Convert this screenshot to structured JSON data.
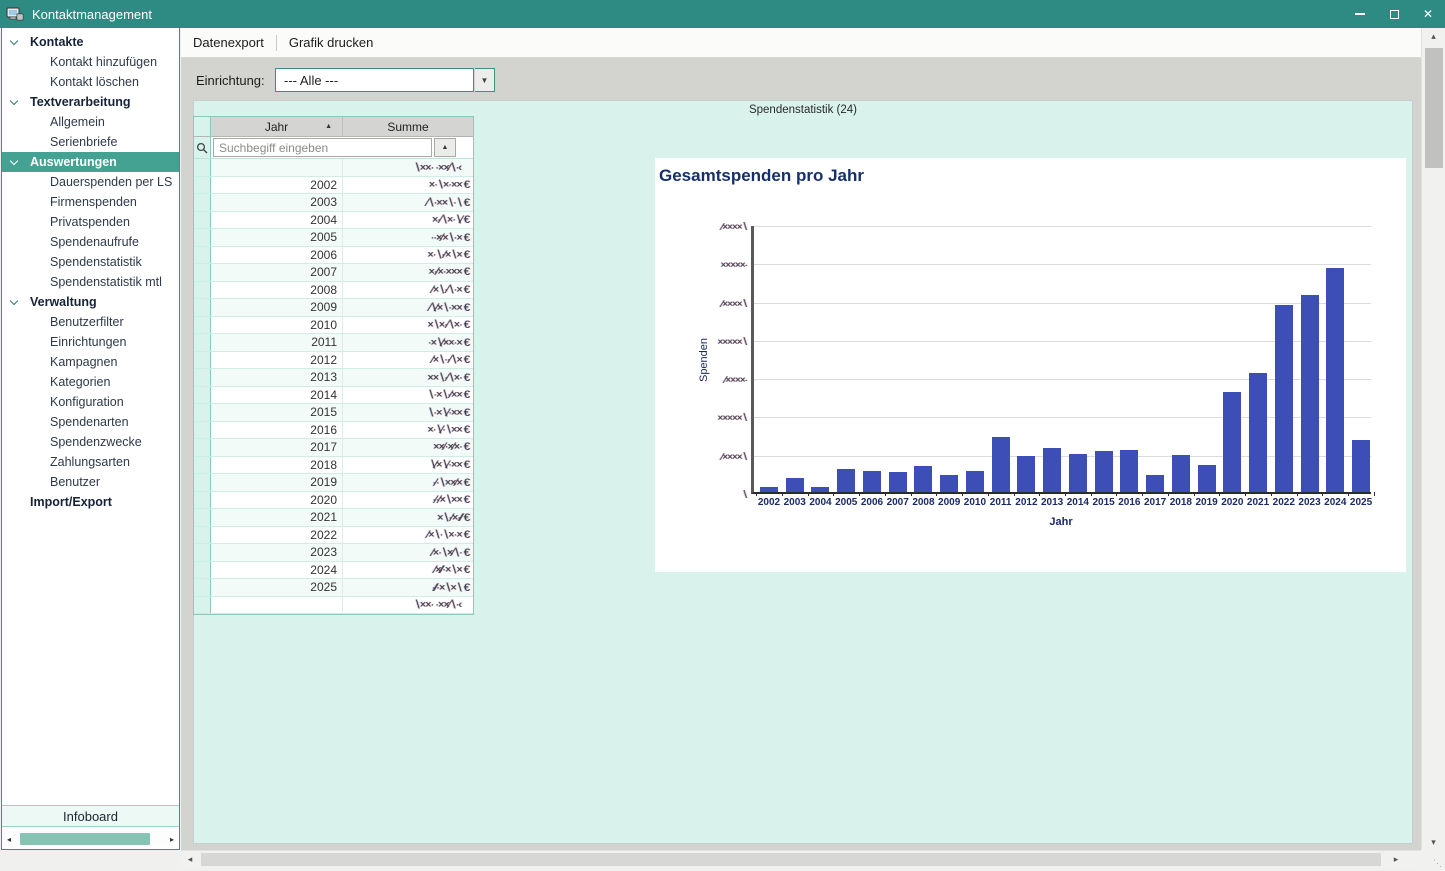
{
  "window": {
    "title": "Kontaktmanagement"
  },
  "sidebar": {
    "items": [
      {
        "label": "Kontakte",
        "type": "section"
      },
      {
        "label": "Kontakt hinzufügen",
        "type": "child"
      },
      {
        "label": "Kontakt löschen",
        "type": "child"
      },
      {
        "label": "Textverarbeitung",
        "type": "section"
      },
      {
        "label": "Allgemein",
        "type": "child"
      },
      {
        "label": "Serienbriefe",
        "type": "child"
      },
      {
        "label": "Auswertungen",
        "type": "section",
        "selected": true
      },
      {
        "label": "Dauerspenden per LS",
        "type": "child"
      },
      {
        "label": "Firmenspenden",
        "type": "child"
      },
      {
        "label": "Privatspenden",
        "type": "child"
      },
      {
        "label": "Spendenaufrufe",
        "type": "child"
      },
      {
        "label": "Spendenstatistik",
        "type": "child"
      },
      {
        "label": "Spendenstatistik mtl",
        "type": "child"
      },
      {
        "label": "Verwaltung",
        "type": "section"
      },
      {
        "label": "Benutzerfilter",
        "type": "child"
      },
      {
        "label": "Einrichtungen",
        "type": "child"
      },
      {
        "label": "Kampagnen",
        "type": "child"
      },
      {
        "label": "Kategorien",
        "type": "child"
      },
      {
        "label": "Konfiguration",
        "type": "child"
      },
      {
        "label": "Spendenarten",
        "type": "child"
      },
      {
        "label": "Spendenzwecke",
        "type": "child"
      },
      {
        "label": "Zahlungsarten",
        "type": "child"
      },
      {
        "label": "Benutzer",
        "type": "child"
      },
      {
        "label": "Import/Export",
        "type": "top"
      }
    ],
    "infoboard_label": "Infoboard"
  },
  "toolbar": {
    "items": [
      {
        "label": "Datenexport"
      },
      {
        "label": "Grafik drucken"
      }
    ]
  },
  "filter": {
    "label": "Einrichtung:",
    "value": "--- Alle ---"
  },
  "panel": {
    "title": "Spendenstatistik (24)"
  },
  "table": {
    "columns": [
      "Jahr",
      "Summe"
    ],
    "search_placeholder": "Suchbegiff eingeben",
    "note": "Summe values are anonymized/scrambled in the source screenshot",
    "rows": [
      {
        "jahr": "",
        "summe": "∖××· ·××∕∖·‹",
        "total": true
      },
      {
        "jahr": "2002",
        "summe": "×·∖×·×× €"
      },
      {
        "jahr": "2003",
        "summe": "∕∖·××∖·∖ €"
      },
      {
        "jahr": "2004",
        "summe": "×·∕∖×·∖∕ €"
      },
      {
        "jahr": "2005",
        "summe": "··×∕×∖·× €"
      },
      {
        "jahr": "2006",
        "summe": "×·∖·∕×∖× €"
      },
      {
        "jahr": "2007",
        "summe": "×·∕×·××× €"
      },
      {
        "jahr": "2008",
        "summe": "∕×∖·∕∖·× €"
      },
      {
        "jahr": "2009",
        "summe": "∕∖∕×∖·×× €"
      },
      {
        "jahr": "2010",
        "summe": "×∖×·∕∖×· €"
      },
      {
        "jahr": "2011",
        "summe": "·×∖∕××·× €"
      },
      {
        "jahr": "2012",
        "summe": "∕×∖··∕∖× €"
      },
      {
        "jahr": "2013",
        "summe": "××∖·∕∖×· €"
      },
      {
        "jahr": "2014",
        "summe": "∖·×∖·∕×× €"
      },
      {
        "jahr": "2015",
        "summe": "∖·×∖∕·×× €"
      },
      {
        "jahr": "2016",
        "summe": "×·∖∕·∖×× €"
      },
      {
        "jahr": "2017",
        "summe": "××∕·×∕×· €"
      },
      {
        "jahr": "2018",
        "summe": "∖∕×∖∕·×× €"
      },
      {
        "jahr": "2019",
        "summe": "·∕·∖××∕× €"
      },
      {
        "jahr": "2020",
        "summe": "·∕·∕×∖×× €"
      },
      {
        "jahr": "2021",
        "summe": "×∖·∕×·∕∕ €"
      },
      {
        "jahr": "2022",
        "summe": "∕×∖·∖×·× €"
      },
      {
        "jahr": "2023",
        "summe": "∕×·∖×∕∖· €"
      },
      {
        "jahr": "2024",
        "summe": "∕×∕∕·×∖× €"
      },
      {
        "jahr": "2025",
        "summe": "·∕∕·×∖×∖ €"
      },
      {
        "jahr": "",
        "summe": "∖××· ·××∕∖·‹",
        "total": true
      }
    ]
  },
  "chart_data": {
    "type": "bar",
    "title": "Gesamtspenden pro Jahr",
    "xlabel": "Jahr",
    "ylabel": "Spenden",
    "categories": [
      2002,
      2003,
      2004,
      2005,
      2006,
      2007,
      2008,
      2009,
      2010,
      2011,
      2012,
      2013,
      2014,
      2015,
      2016,
      2017,
      2018,
      2019,
      2020,
      2021,
      2022,
      2023,
      2024,
      2025
    ],
    "values": [
      0.13,
      0.37,
      0.13,
      0.6,
      0.55,
      0.53,
      0.67,
      0.45,
      0.55,
      1.45,
      0.94,
      1.15,
      1.0,
      1.08,
      1.11,
      0.45,
      0.97,
      0.7,
      2.6,
      3.11,
      4.88,
      5.15,
      5.85,
      1.37
    ],
    "ylim": [
      0,
      7
    ],
    "grid": true,
    "legend": false,
    "bar_color": "#3d4eb6",
    "note": "y-axis tick labels are anonymized/scrambled in the source; values are expressed in gridline units on a 0–7 axis",
    "y_tick_labels_scrambled": [
      "∕××××∖",
      "×××××·",
      "∕××××∖",
      "×××××∖",
      "∕××××·",
      "×××××∖",
      "∕××××∖"
    ],
    "y_origin_label_scrambled": "∖"
  }
}
